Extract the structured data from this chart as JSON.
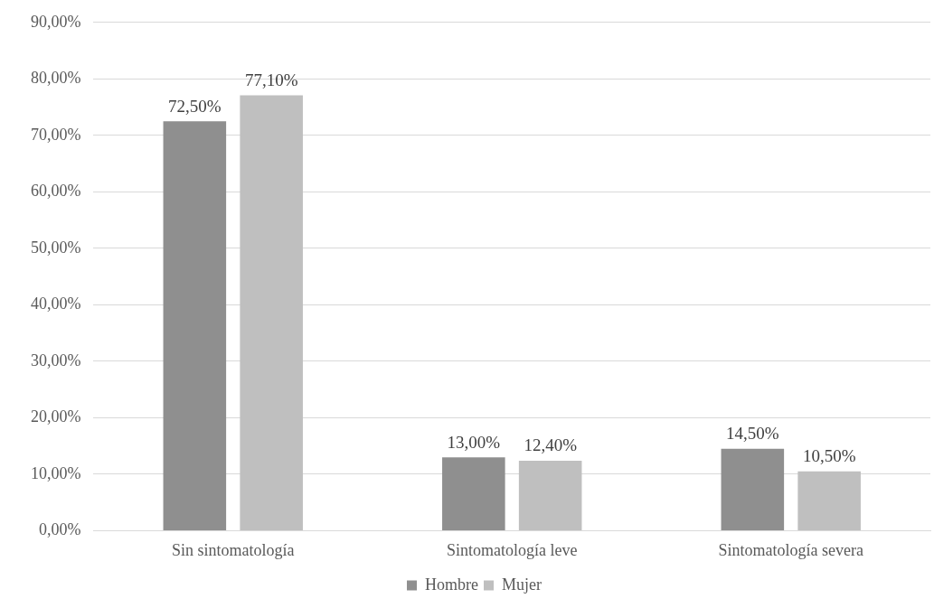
{
  "chart_data": {
    "type": "bar",
    "categories": [
      "Sin sintomatología",
      "Sintomatología leve",
      "Sintomatología severa"
    ],
    "series": [
      {
        "name": "Hombre",
        "color": "#8f8f8f",
        "values": [
          72.5,
          13.0,
          14.5
        ],
        "value_labels": [
          "72,50%",
          "13,00%",
          "14,50%"
        ]
      },
      {
        "name": "Mujer",
        "color": "#bfbfbf",
        "values": [
          77.1,
          12.4,
          10.5
        ],
        "value_labels": [
          "77,10%",
          "12,40%",
          "10,50%"
        ]
      }
    ],
    "ylim": [
      0,
      90
    ],
    "yticks": [
      {
        "value": 0,
        "label": "0,00%"
      },
      {
        "value": 10,
        "label": "10,00%"
      },
      {
        "value": 20,
        "label": "20,00%"
      },
      {
        "value": 30,
        "label": "30,00%"
      },
      {
        "value": 40,
        "label": "40,00%"
      },
      {
        "value": 50,
        "label": "50,00%"
      },
      {
        "value": 60,
        "label": "60,00%"
      },
      {
        "value": 70,
        "label": "70,00%"
      },
      {
        "value": 80,
        "label": "80,00%"
      },
      {
        "value": 90,
        "label": "90,00%"
      }
    ],
    "grid": "y",
    "legend": "bottom"
  }
}
